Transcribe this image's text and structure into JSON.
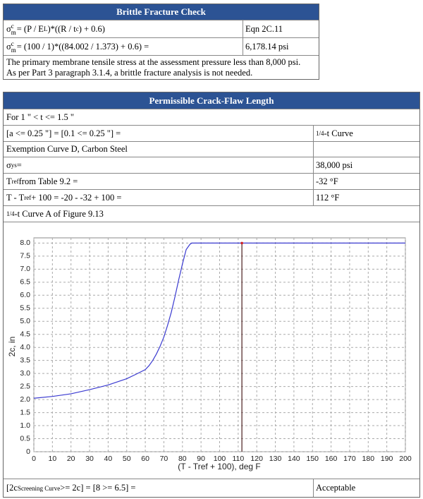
{
  "brittle": {
    "title": "Brittle Fracture Check",
    "rows": [
      {
        "label": [
          "σ",
          "c",
          "m",
          " = (P / E",
          "L",
          ")*((R / t",
          "c",
          ") + 0.6)"
        ],
        "value": "Eqn 2C.11"
      },
      {
        "label": [
          "σ",
          "c",
          "m",
          " = (100 / 1)*((84.002 / 1.373) + 0.6) ="
        ],
        "value": "6,178.14 psi"
      }
    ],
    "note": [
      "The primary membrane tensile stress at the assessment pressure less than 8,000 psi.",
      "As per Part 3 paragraph 3.1.4, a brittle fracture analysis is not needed."
    ]
  },
  "crack": {
    "title": "Permissible Crack-Flaw Length",
    "rows": [
      {
        "label": [
          "For 1 \" < t <= 1.5 \""
        ]
      },
      {
        "label": [
          "[a <= 0.25 \"] = [0.1 <= 0.25 \"] ="
        ],
        "value": [
          "1/4",
          "-t Curve"
        ]
      },
      {
        "label": [
          "Exemption Curve D, Carbon Steel"
        ]
      },
      {
        "label": [
          "σ",
          "ys",
          " ="
        ],
        "value": [
          "38,000 psi"
        ]
      },
      {
        "label": [
          "T",
          "ref",
          " from Table 9.2 ="
        ],
        "value": [
          "-32 °F"
        ]
      },
      {
        "label": [
          "T - T",
          "ref",
          " + 100 = -20 - -32 + 100 ="
        ],
        "value": [
          "112 °F"
        ]
      },
      {
        "label": [
          "1/4",
          "-t Curve A of Figure 9.13"
        ]
      }
    ],
    "result": {
      "label": [
        "[2c",
        "Screening Curve",
        " >= 2c] = [8 >= 6.5] ="
      ],
      "value": "Acceptable"
    }
  },
  "chart_data": {
    "type": "line",
    "x_label": "(T - Tref + 100), deg F",
    "y_label": "2c, in",
    "x": [
      0,
      10,
      20,
      30,
      40,
      50,
      55,
      60,
      62,
      64,
      66,
      68,
      70,
      72,
      74,
      76,
      78,
      80,
      82,
      84,
      85,
      100,
      150,
      200
    ],
    "series": [
      {
        "name": "Curve A",
        "color": "#3a3ad0",
        "values": [
          2.05,
          2.12,
          2.22,
          2.38,
          2.56,
          2.8,
          2.97,
          3.15,
          3.3,
          3.5,
          3.75,
          4.05,
          4.4,
          4.85,
          5.35,
          5.95,
          6.6,
          7.2,
          7.75,
          7.95,
          8.0,
          8.0,
          8.0,
          8.0
        ]
      }
    ],
    "reference": {
      "x": 112,
      "y": 8.0,
      "color": "#4a1c1c",
      "marker_color": "#d02020"
    },
    "xlim": [
      0,
      200
    ],
    "ylim": [
      0,
      8.2
    ],
    "xticks": [
      0,
      10,
      20,
      30,
      40,
      50,
      60,
      70,
      80,
      90,
      100,
      110,
      120,
      130,
      140,
      150,
      160,
      170,
      180,
      190,
      200
    ],
    "yticks": [
      0,
      0.5,
      {
        "value": 1,
        "label": "1.0"
      },
      1.5,
      {
        "value": 2,
        "label": "2.0"
      },
      2.5,
      {
        "value": 3,
        "label": "3.0"
      },
      3.5,
      {
        "value": 4,
        "label": "4.0"
      },
      4.5,
      {
        "value": 5,
        "label": "5.0"
      },
      5.5,
      {
        "value": 6,
        "label": "6.0"
      },
      6.5,
      {
        "value": 7,
        "label": "7.0"
      },
      7.5,
      {
        "value": 8,
        "label": "8.0"
      }
    ],
    "grid": true
  }
}
